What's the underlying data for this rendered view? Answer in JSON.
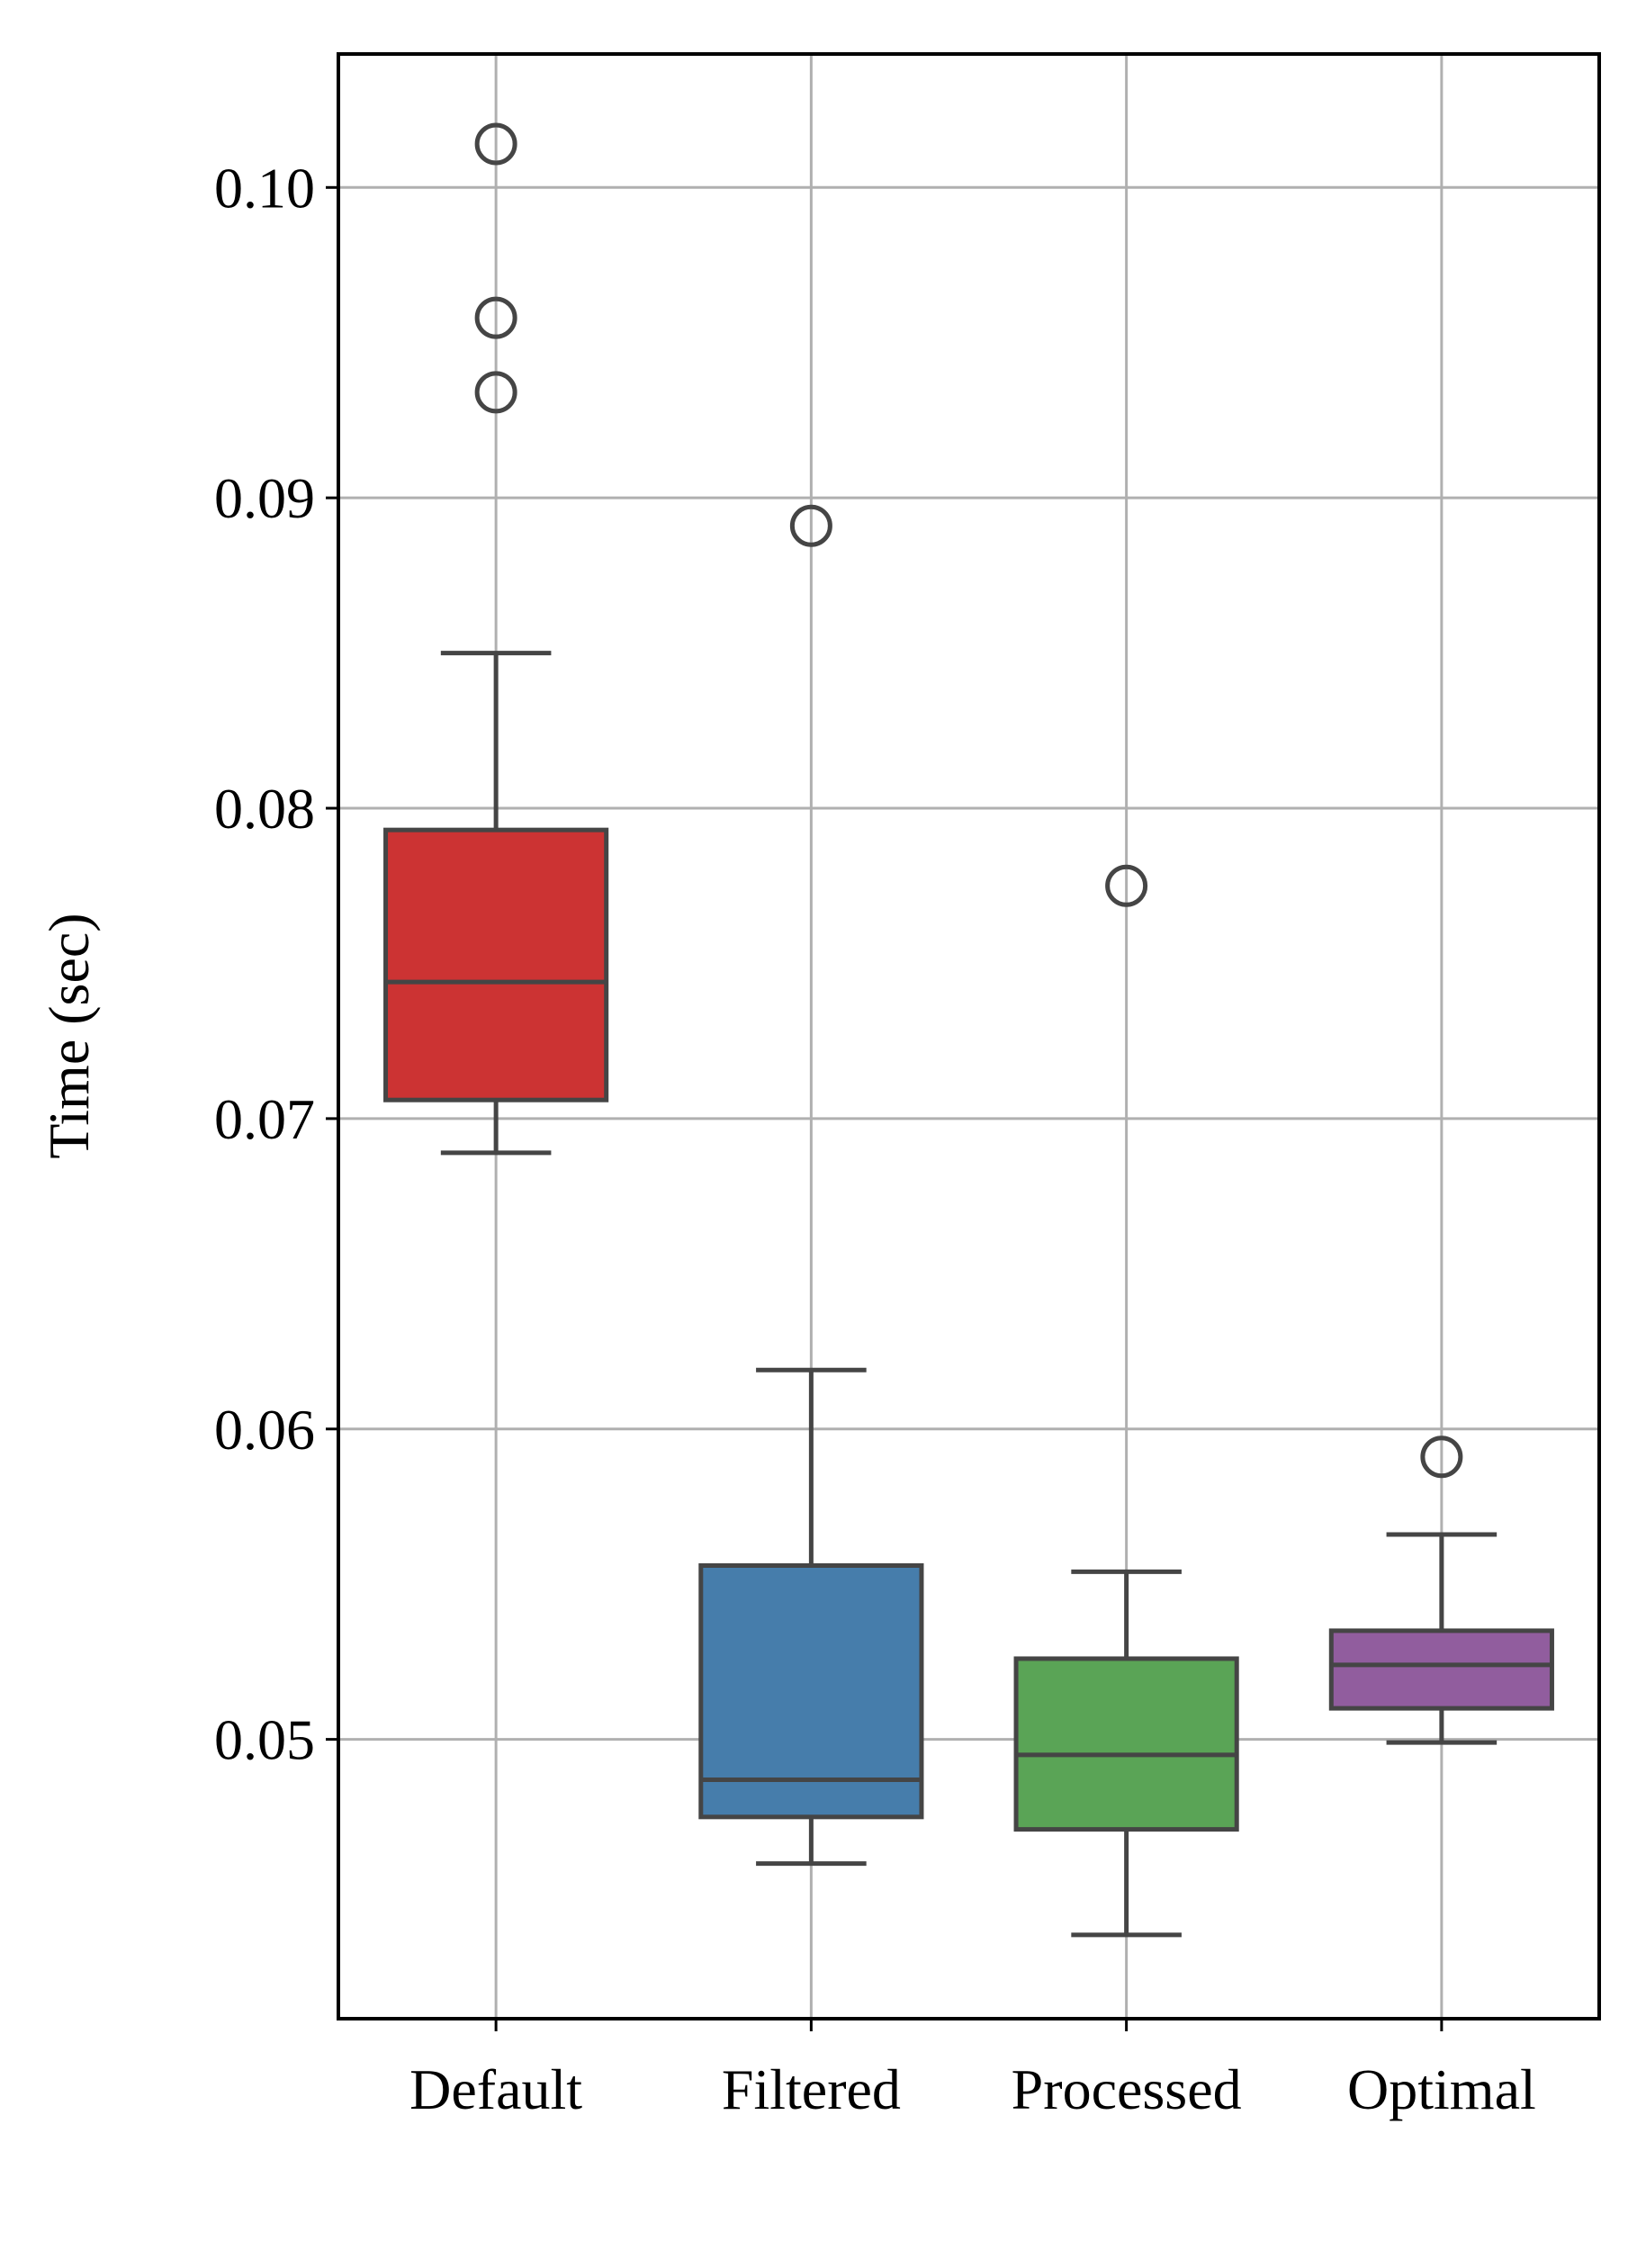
{
  "chart_data": {
    "type": "box",
    "ylabel": "Time (sec)",
    "xlabel": "",
    "ylim": [
      0.041,
      0.1043
    ],
    "yticks": [
      0.05,
      0.06,
      0.07,
      0.08,
      0.09,
      0.1
    ],
    "ytick_labels": [
      "0.05",
      "0.06",
      "0.07",
      "0.08",
      "0.09",
      "0.10"
    ],
    "grid": true,
    "categories": [
      "Default",
      "Filtered",
      "Processed",
      "Optimal"
    ],
    "series": [
      {
        "category": "Default",
        "color": "#cc3333",
        "whisker_low": 0.0689,
        "q1": 0.0706,
        "median": 0.0744,
        "q3": 0.0793,
        "whisker_high": 0.085,
        "outliers": [
          0.1014,
          0.0958,
          0.0934
        ]
      },
      {
        "category": "Filtered",
        "color": "#467dab",
        "whisker_low": 0.046,
        "q1": 0.0475,
        "median": 0.0487,
        "q3": 0.0556,
        "whisker_high": 0.0619,
        "outliers": [
          0.0891
        ]
      },
      {
        "category": "Processed",
        "color": "#5aa456",
        "whisker_low": 0.0437,
        "q1": 0.0471,
        "median": 0.0495,
        "q3": 0.0526,
        "whisker_high": 0.0554,
        "outliers": [
          0.0775
        ]
      },
      {
        "category": "Optimal",
        "color": "#915d9e",
        "whisker_low": 0.0499,
        "q1": 0.051,
        "median": 0.0524,
        "q3": 0.0535,
        "whisker_high": 0.0566,
        "outliers": [
          0.0591
        ]
      }
    ]
  }
}
